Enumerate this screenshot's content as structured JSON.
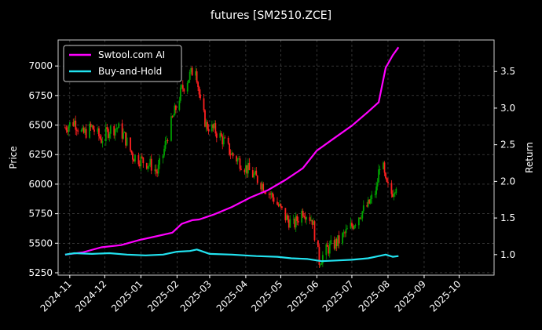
{
  "chart_data": {
    "type": "line",
    "title": "futures [SM2510.ZCE]",
    "ylabel_left": "Price",
    "ylabel_right": "Return",
    "grid": true,
    "legend_position": "top-left",
    "x_axis": {
      "range": [
        "2024-10-22",
        "2025-10-31"
      ],
      "ticks": [
        "2024-11",
        "2024-12",
        "2025-01",
        "2025-02",
        "2025-03",
        "2025-04",
        "2025-05",
        "2025-06",
        "2025-07",
        "2025-08",
        "2025-09",
        "2025-10"
      ]
    },
    "y_left": {
      "range": [
        5230,
        7220
      ],
      "ticks": [
        5250,
        5500,
        5750,
        6000,
        6250,
        6500,
        6750,
        7000
      ]
    },
    "y_right": {
      "range": [
        0.72,
        3.93
      ],
      "ticks": [
        1.0,
        1.5,
        2.0,
        2.5,
        3.0,
        3.5
      ],
      "tick_labels": [
        "1.0",
        "1.5",
        "2.0",
        "2.5",
        "3.0",
        "3.5"
      ]
    },
    "colors": {
      "up": "#00a000",
      "down": "#ff2020",
      "ai": "#ff00ff",
      "bh": "#22e3f0",
      "grid": "#555555",
      "frame": "#cccccc"
    },
    "series": [
      {
        "name": "Swtool.com AI",
        "axis": "right",
        "points": [
          [
            "2024-10-28",
            1.0
          ],
          [
            "2024-11-12",
            1.03
          ],
          [
            "2024-11-28",
            1.1
          ],
          [
            "2024-12-15",
            1.13
          ],
          [
            "2024-12-31",
            1.2
          ],
          [
            "2025-01-14",
            1.25
          ],
          [
            "2025-01-28",
            1.3
          ],
          [
            "2025-02-05",
            1.42
          ],
          [
            "2025-02-14",
            1.47
          ],
          [
            "2025-02-20",
            1.48
          ],
          [
            "2025-03-05",
            1.55
          ],
          [
            "2025-03-20",
            1.65
          ],
          [
            "2025-04-05",
            1.78
          ],
          [
            "2025-04-20",
            1.88
          ],
          [
            "2025-05-05",
            2.02
          ],
          [
            "2025-05-20",
            2.18
          ],
          [
            "2025-06-01",
            2.42
          ],
          [
            "2025-06-15",
            2.58
          ],
          [
            "2025-07-01",
            2.76
          ],
          [
            "2025-07-15",
            2.95
          ],
          [
            "2025-07-24",
            3.08
          ],
          [
            "2025-07-30",
            3.55
          ],
          [
            "2025-08-05",
            3.72
          ],
          [
            "2025-08-10",
            3.83
          ]
        ]
      },
      {
        "name": "Buy-and-Hold",
        "axis": "right",
        "points": [
          [
            "2024-10-28",
            1.0
          ],
          [
            "2024-11-05",
            1.02
          ],
          [
            "2024-11-20",
            1.01
          ],
          [
            "2024-12-05",
            1.02
          ],
          [
            "2024-12-20",
            1.0
          ],
          [
            "2025-01-05",
            0.99
          ],
          [
            "2025-01-20",
            1.0
          ],
          [
            "2025-02-01",
            1.04
          ],
          [
            "2025-02-12",
            1.05
          ],
          [
            "2025-02-18",
            1.07
          ],
          [
            "2025-03-01",
            1.01
          ],
          [
            "2025-03-20",
            1.0
          ],
          [
            "2025-04-10",
            0.98
          ],
          [
            "2025-04-28",
            0.97
          ],
          [
            "2025-05-10",
            0.95
          ],
          [
            "2025-05-24",
            0.94
          ],
          [
            "2025-06-05",
            0.91
          ],
          [
            "2025-06-18",
            0.92
          ],
          [
            "2025-07-01",
            0.93
          ],
          [
            "2025-07-15",
            0.95
          ],
          [
            "2025-07-24",
            0.98
          ],
          [
            "2025-07-30",
            1.0
          ],
          [
            "2025-08-05",
            0.97
          ],
          [
            "2025-08-10",
            0.98
          ]
        ]
      }
    ],
    "price_path": [
      [
        "2024-10-28",
        6480
      ],
      [
        "2024-11-05",
        6530
      ],
      [
        "2024-11-12",
        6420
      ],
      [
        "2024-11-20",
        6480
      ],
      [
        "2024-11-28",
        6380
      ],
      [
        "2024-12-05",
        6460
      ],
      [
        "2024-12-12",
        6480
      ],
      [
        "2024-12-18",
        6400
      ],
      [
        "2024-12-25",
        6240
      ],
      [
        "2025-01-02",
        6200
      ],
      [
        "2025-01-10",
        6160
      ],
      [
        "2025-01-15",
        6100
      ],
      [
        "2025-01-20",
        6250
      ],
      [
        "2025-01-24",
        6420
      ],
      [
        "2025-02-05",
        6800
      ],
      [
        "2025-02-12",
        6920
      ],
      [
        "2025-02-17",
        7000
      ],
      [
        "2025-02-21",
        6680
      ],
      [
        "2025-02-26",
        6500
      ],
      [
        "2025-03-05",
        6460
      ],
      [
        "2025-03-12",
        6380
      ],
      [
        "2025-03-20",
        6250
      ],
      [
        "2025-03-28",
        6180
      ],
      [
        "2025-04-05",
        6100
      ],
      [
        "2025-04-15",
        6000
      ],
      [
        "2025-04-25",
        5880
      ],
      [
        "2025-05-05",
        5720
      ],
      [
        "2025-05-12",
        5650
      ],
      [
        "2025-05-20",
        5780
      ],
      [
        "2025-05-28",
        5700
      ],
      [
        "2025-06-03",
        5350
      ],
      [
        "2025-06-10",
        5450
      ],
      [
        "2025-06-20",
        5520
      ],
      [
        "2025-07-01",
        5650
      ],
      [
        "2025-07-08",
        5750
      ],
      [
        "2025-07-15",
        5820
      ],
      [
        "2025-07-22",
        5950
      ],
      [
        "2025-07-26",
        6250
      ],
      [
        "2025-07-30",
        6000
      ],
      [
        "2025-08-04",
        5920
      ],
      [
        "2025-08-10",
        6050
      ]
    ]
  }
}
